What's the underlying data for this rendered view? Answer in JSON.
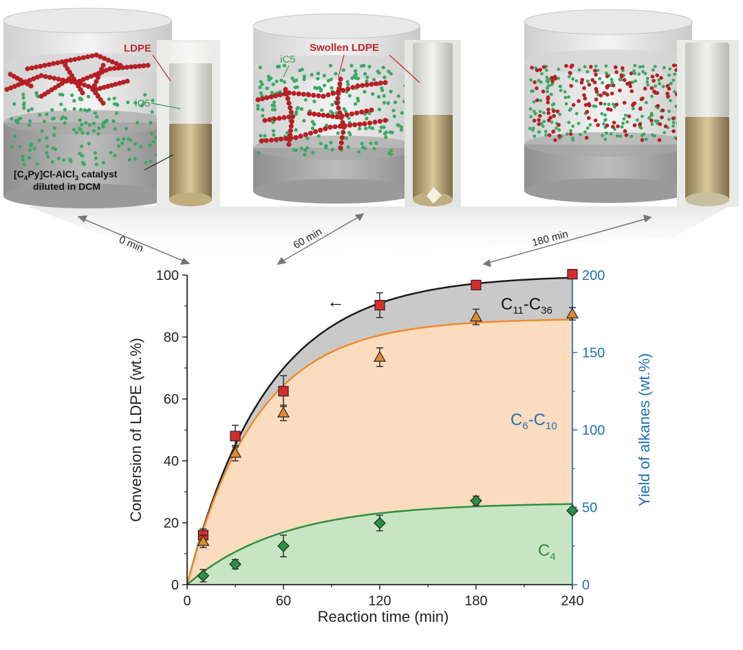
{
  "panel_labels": {
    "p1_ldpe": "LDPE",
    "p1_ic5": "iC5",
    "p1_catalyst_line1": "[C",
    "p1_catalyst_sub1": "4",
    "p1_catalyst_mid": "Py]Cl-AlCl",
    "p1_catalyst_sub2": "3",
    "p1_catalyst_end": " catalyst",
    "p1_catalyst_line2": "diluted in DCM",
    "p2_ic5": "iC5",
    "p2_swollen": "Swollen LDPE"
  },
  "time_labels": {
    "t0": "0 min",
    "t60": "60 min",
    "t180": "180 min"
  },
  "colors": {
    "ldpe_bead": "#b52025",
    "ic5_bead": "#3aa864",
    "label_red": "#c0262d",
    "label_green": "#2f9e56",
    "conversion_line": "#1a1a1a",
    "c6c10_line": "#f08a2a",
    "c4_line": "#2e8f3e",
    "c4_fill": "#c7e5c3",
    "c6c10_fill": "#fbdcbf",
    "c11c36_fill": "#c9c9c9",
    "right_axis": "#1f6fb8",
    "square_marker": "#d62d2d",
    "triangle_marker": "#e08a34",
    "diamond_marker": "#2c8f46"
  },
  "chart_data": {
    "type": "scatter",
    "xlabel": "Reaction time (min)",
    "ylabel": "Conversion of LDPE (wt.%)",
    "y2label": "Yield of alkanes  (wt.%)",
    "xlim": [
      0,
      240
    ],
    "ylim": [
      0,
      100
    ],
    "y2lim": [
      0,
      200
    ],
    "xticks": [
      0,
      60,
      120,
      180,
      240
    ],
    "yticks": [
      0,
      20,
      40,
      60,
      80,
      100
    ],
    "y2ticks": [
      0,
      50,
      100,
      150,
      200
    ],
    "arrow_label": "←",
    "region_labels": {
      "c11c36": {
        "main": "C",
        "sub1": "11",
        "dash": "-C",
        "sub2": "36"
      },
      "c6c10": {
        "main": "C",
        "sub1": "6",
        "dash": "-C",
        "sub2": "10"
      },
      "c4": {
        "main": "C",
        "sub1": "4"
      }
    },
    "series": [
      {
        "marker": "square",
        "x": [
          10,
          30,
          60,
          120,
          180,
          240
        ],
        "y": [
          16,
          48,
          62.5,
          90.3,
          96.8,
          100.3
        ],
        "err": [
          2.0,
          3.5,
          5.0,
          4.0,
          1.5,
          0.5
        ]
      },
      {
        "marker": "triangle",
        "x": [
          10,
          30,
          60,
          120,
          180,
          240
        ],
        "y": [
          14,
          42.5,
          55.5,
          73.5,
          86.5,
          87.5
        ],
        "err": [
          2.0,
          2.5,
          2.5,
          3.0,
          2.5,
          2.0
        ]
      },
      {
        "marker": "diamond",
        "x": [
          10,
          30,
          60,
          120,
          180,
          240
        ],
        "y": [
          2.9,
          6.6,
          12.5,
          19.9,
          27.1,
          23.9
        ],
        "err": [
          2.0,
          1.5,
          3.5,
          2.5,
          1.5,
          0.5
        ]
      }
    ],
    "fits": {
      "conversion": {
        "A": 100,
        "k": 0.02
      },
      "c6c10": {
        "A": 86,
        "k": 0.023
      },
      "c4": {
        "A": 26.5,
        "k": 0.017
      }
    }
  }
}
